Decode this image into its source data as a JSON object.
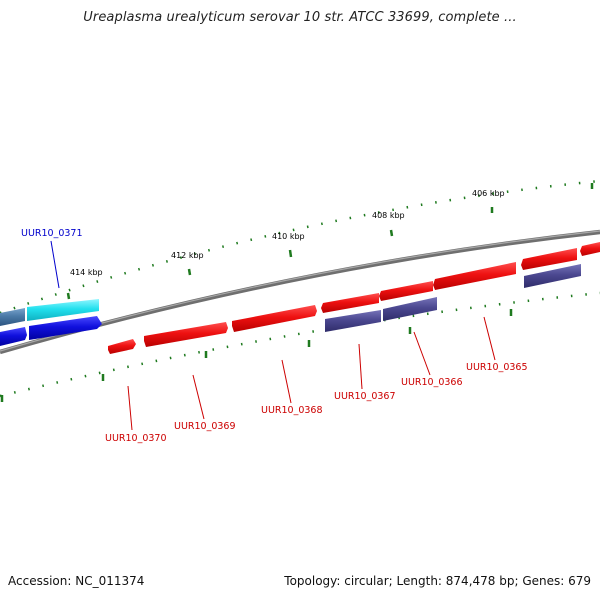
{
  "title": "Ureaplasma urealyticum serovar 10 str. ATCC 33699, complete ...",
  "footer": {
    "accession": "Accession: NC_011374",
    "topology": "Topology: circular; Length: 874,478 bp; Genes: 679"
  },
  "ruler_labels": [
    "414 kbp",
    "412 kbp",
    "410 kbp",
    "408 kbp",
    "406 kbp"
  ],
  "genes": {
    "gene_0371": "UUR10_0371",
    "gene_0370": "UUR10_0370",
    "gene_0369": "UUR10_0369",
    "gene_0368": "UUR10_0368",
    "gene_0367": "UUR10_0367",
    "gene_0366": "UUR10_0366",
    "gene_0365": "UUR10_0365"
  },
  "colors": {
    "backbone": "#7a7a7a",
    "tick_green": "#1f7a1f",
    "gene_red": "#ee1111",
    "gene_blue": "#1010dd",
    "gene_cyan": "#22e0ee",
    "gene_steel": "#4a7aa8",
    "gene_slate": "#4b4890",
    "label_red": "#cc0000",
    "label_blue": "#0000cc"
  }
}
